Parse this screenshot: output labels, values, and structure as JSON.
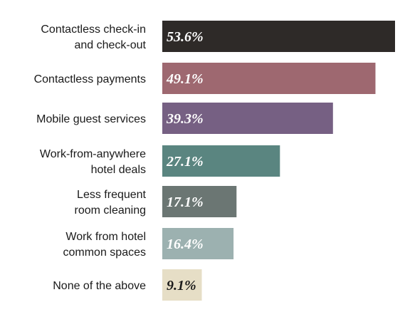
{
  "chart_data": {
    "type": "bar",
    "orientation": "horizontal",
    "categories": [
      [
        "Contactless check-in",
        "and check-out"
      ],
      [
        "Contactless payments"
      ],
      [
        "Mobile guest services"
      ],
      [
        "Work-from-anywhere",
        "hotel deals"
      ],
      [
        "Less frequent",
        "room cleaning"
      ],
      [
        "Work from hotel",
        "common spaces"
      ],
      [
        "None of the above"
      ]
    ],
    "values": [
      53.6,
      49.1,
      39.3,
      27.1,
      17.1,
      16.4,
      9.1
    ],
    "value_labels": [
      "53.6%",
      "49.1%",
      "39.3%",
      "27.1%",
      "17.1%",
      "16.4%",
      "9.1%"
    ],
    "bar_colors": [
      "#2e2a28",
      "#9e6870",
      "#766083",
      "#5a8580",
      "#6b7673",
      "#9cb1b0",
      "#e6dec6"
    ],
    "label_colors": [
      "#ffffff",
      "#ffffff",
      "#ffffff",
      "#ffffff",
      "#ffffff",
      "#ffffff",
      "#1a1a1a"
    ],
    "grid": false,
    "legend": "none",
    "xlim": [
      0,
      60
    ]
  }
}
